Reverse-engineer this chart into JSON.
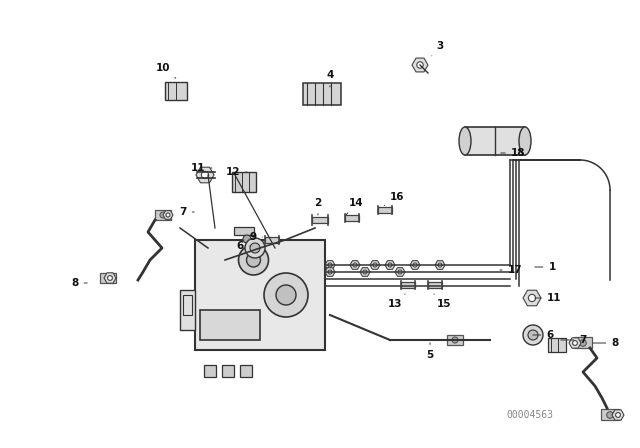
{
  "background_color": "#ffffff",
  "diagram_color": "#333333",
  "watermark": "00004563",
  "fig_width": 6.4,
  "fig_height": 4.48,
  "dpi": 100
}
